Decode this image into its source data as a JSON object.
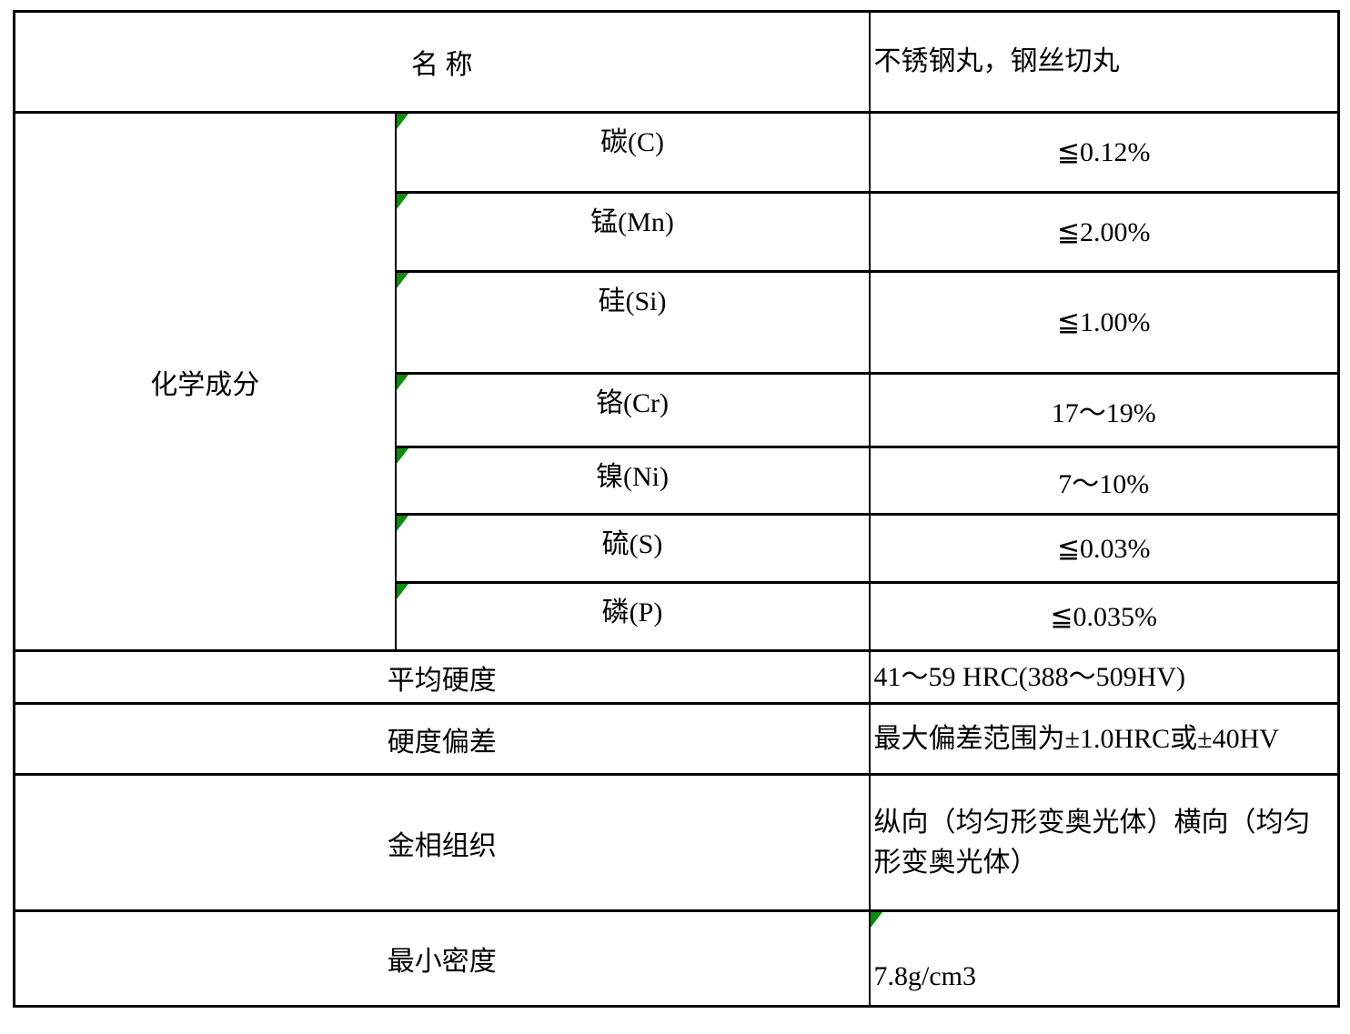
{
  "colors": {
    "background": "#ffffff",
    "border": "#000000",
    "text": "#000000",
    "error_triangle_green": "#0e8a0e"
  },
  "table": {
    "header": {
      "label": "名 称",
      "value": "不锈钢丸，钢丝切丸"
    },
    "chemical_composition": {
      "label": "化学成分",
      "elements": [
        {
          "name": "碳(C)",
          "value": "≦0.12%"
        },
        {
          "name": "锰(Mn)",
          "value": "≦2.00%"
        },
        {
          "name": "硅(Si)",
          "value": "≦1.00%"
        },
        {
          "name": "铬(Cr)",
          "value": "17～19%"
        },
        {
          "name": "镍(Ni)",
          "value": "7～10%"
        },
        {
          "name": "硫(S)",
          "value": "≦0.03%"
        },
        {
          "name": "磷(P)",
          "value": "≦0.035%"
        }
      ]
    },
    "properties": [
      {
        "label": "平均硬度",
        "value": "41～59 HRC(388～509HV)"
      },
      {
        "label": "硬度偏差",
        "value": "最大偏差范围为±1.0HRC或±40HV"
      },
      {
        "label": "金相组织",
        "value": "纵向（均匀形变奥光体）横向（均匀形变奥光体）"
      },
      {
        "label": "最小密度",
        "value": "7.8g/cm3"
      }
    ]
  }
}
